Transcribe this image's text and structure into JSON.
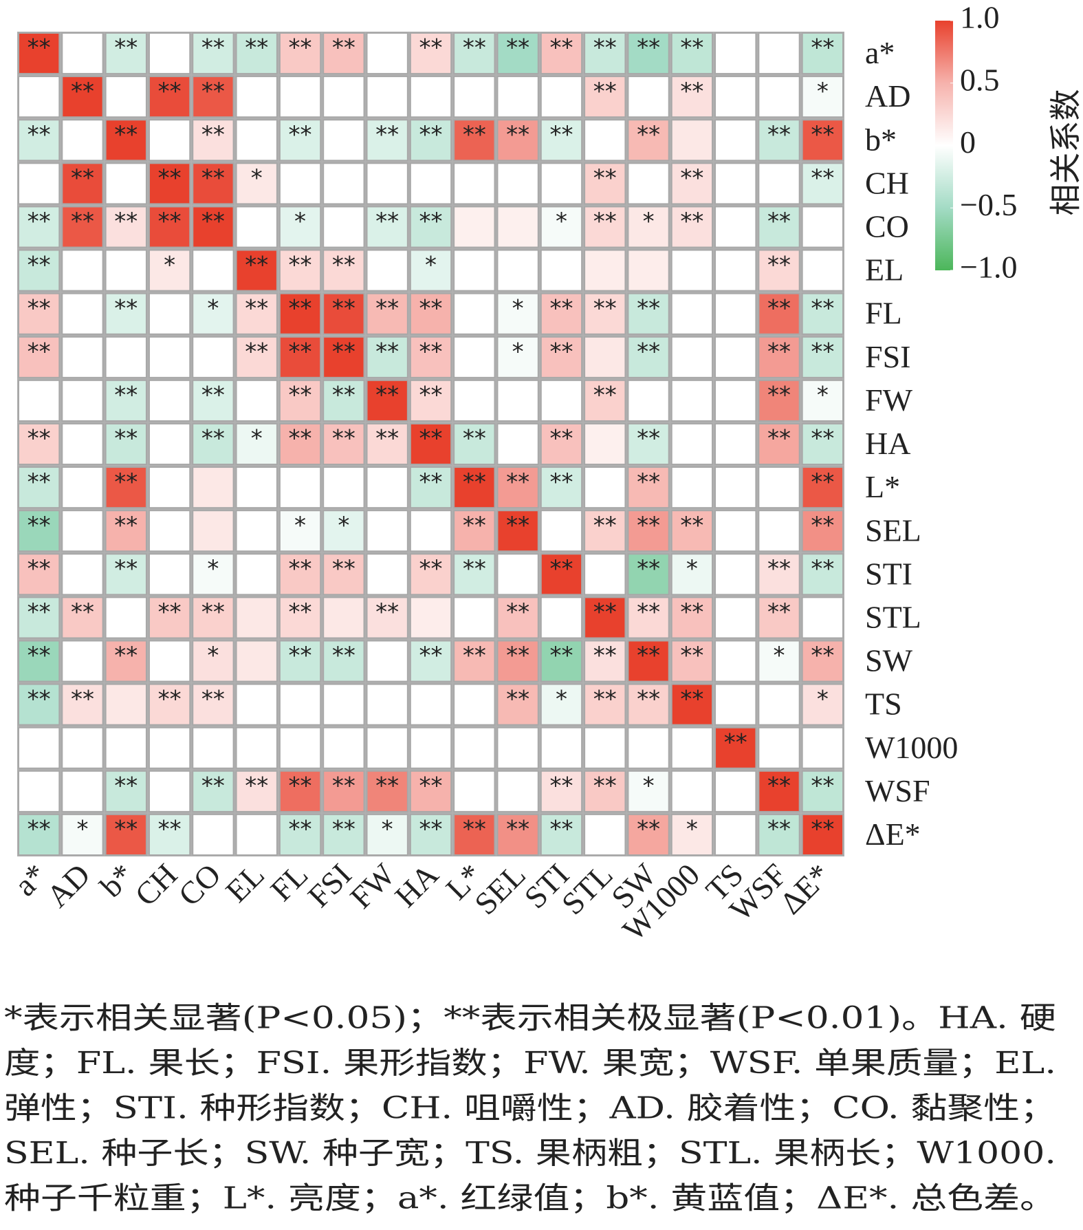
{
  "chart_data": {
    "type": "heatmap",
    "x_categories": [
      "a*",
      "AD",
      "b*",
      "CH",
      "CO",
      "EL",
      "FL",
      "FSI",
      "FW",
      "HA",
      "L*",
      "SEL",
      "STI",
      "STL",
      "SW",
      "W1000",
      "TS",
      "WSF",
      "ΔE*"
    ],
    "y_categories": [
      "a*",
      "AD",
      "b*",
      "CH",
      "CO",
      "EL",
      "FL",
      "FSI",
      "FW",
      "HA",
      "L*",
      "SEL",
      "STI",
      "STL",
      "SW",
      "TS",
      "W1000",
      "WSF",
      "ΔE*"
    ],
    "values": [
      [
        1.0,
        0,
        -0.25,
        0,
        -0.25,
        -0.3,
        0.35,
        0.4,
        0,
        0.25,
        -0.3,
        -0.5,
        0.4,
        -0.3,
        -0.5,
        -0.35,
        0,
        0,
        -0.35
      ],
      [
        0,
        1.0,
        0,
        0.95,
        0.9,
        0,
        0,
        0,
        0,
        0,
        0,
        0,
        0,
        0.3,
        0,
        0.2,
        0,
        0,
        -0.05
      ],
      [
        -0.25,
        0,
        1.0,
        0,
        0.2,
        0,
        -0.2,
        0,
        -0.2,
        -0.3,
        0.85,
        0.6,
        -0.2,
        0,
        0.45,
        0.15,
        0,
        -0.3,
        0.9
      ],
      [
        0,
        0.95,
        0,
        1.0,
        0.95,
        0.15,
        0,
        0,
        0,
        0,
        0,
        0,
        0,
        0.3,
        0,
        0.2,
        0,
        0,
        -0.2
      ],
      [
        -0.25,
        0.9,
        0.2,
        0.95,
        1.0,
        0,
        -0.15,
        0,
        -0.2,
        -0.3,
        0.1,
        0.1,
        -0.05,
        0.25,
        0.15,
        0.2,
        0,
        -0.3,
        0
      ],
      [
        -0.3,
        0,
        0,
        0.15,
        0,
        1.0,
        0.25,
        0.25,
        0,
        -0.15,
        0,
        0,
        0,
        0.12,
        0.12,
        0,
        0,
        0.25,
        0
      ],
      [
        0.35,
        0,
        -0.2,
        0,
        -0.15,
        0.25,
        1.0,
        0.95,
        0.45,
        0.5,
        0,
        -0.05,
        0.4,
        0.25,
        -0.3,
        0,
        0,
        0.8,
        -0.3
      ],
      [
        0.4,
        0,
        0,
        0,
        0,
        0.25,
        0.95,
        1.0,
        -0.3,
        0.4,
        0,
        -0.05,
        0.4,
        0.15,
        -0.3,
        0,
        0,
        0.6,
        -0.3
      ],
      [
        0,
        0,
        -0.25,
        0,
        -0.2,
        0,
        0.35,
        -0.3,
        1.0,
        0.25,
        0,
        0,
        0,
        0.3,
        0,
        0,
        0,
        0.7,
        -0.05
      ],
      [
        0.3,
        0,
        -0.3,
        0,
        -0.3,
        -0.1,
        0.5,
        0.4,
        0.25,
        1.0,
        -0.3,
        0,
        0.4,
        0.1,
        -0.25,
        0,
        0,
        0.55,
        -0.3
      ],
      [
        -0.3,
        0,
        0.9,
        0,
        0.15,
        0,
        0,
        0,
        0,
        -0.3,
        1.0,
        0.6,
        -0.25,
        0,
        0.45,
        0,
        0,
        0,
        0.9
      ],
      [
        -0.55,
        0,
        0.5,
        0,
        0.15,
        0,
        -0.05,
        -0.15,
        0,
        0,
        0.5,
        1.0,
        0,
        0.3,
        0.6,
        0.45,
        0,
        0,
        0.65
      ],
      [
        0.4,
        0,
        -0.25,
        0,
        -0.05,
        0,
        0.35,
        0.35,
        0,
        0.3,
        -0.25,
        0,
        1.0,
        0,
        -0.6,
        -0.1,
        0,
        0.2,
        -0.3
      ],
      [
        -0.3,
        0.35,
        0,
        0.35,
        0.3,
        0.15,
        0.25,
        0.15,
        0.2,
        0.12,
        0,
        0.4,
        0,
        1.0,
        0.25,
        0.4,
        0,
        0.35,
        0
      ],
      [
        -0.55,
        0,
        0.5,
        0,
        0.2,
        0.15,
        -0.3,
        -0.3,
        0,
        -0.25,
        0.45,
        0.6,
        -0.6,
        0.2,
        1.0,
        0.4,
        0,
        -0.05,
        0.5
      ],
      [
        -0.4,
        0.2,
        0.15,
        0.25,
        0.2,
        0,
        0,
        0,
        0,
        0,
        0,
        0.45,
        -0.1,
        0.3,
        0.3,
        1.0,
        0,
        0,
        0.2
      ],
      [
        0,
        0,
        0,
        0,
        0,
        0,
        0,
        0,
        0,
        0,
        0,
        0,
        0,
        0,
        0,
        0,
        1.0,
        0,
        0
      ],
      [
        0,
        0,
        -0.3,
        0,
        -0.3,
        0.2,
        0.8,
        0.6,
        0.7,
        0.5,
        0,
        0,
        0.2,
        0.35,
        -0.05,
        0,
        0,
        1.0,
        -0.35
      ],
      [
        -0.4,
        -0.05,
        0.9,
        -0.2,
        0,
        0,
        -0.3,
        -0.3,
        -0.1,
        -0.3,
        0.85,
        0.65,
        -0.3,
        0,
        0.55,
        0.15,
        0,
        -0.35,
        1.0
      ]
    ],
    "stars": [
      [
        "**",
        null,
        "**",
        null,
        "**",
        "**",
        "**",
        "**",
        null,
        "**",
        "**",
        "**",
        "**",
        "**",
        "**",
        "**",
        null,
        null,
        "**"
      ],
      [
        null,
        "**",
        null,
        "**",
        "**",
        null,
        null,
        null,
        null,
        null,
        null,
        null,
        null,
        "**",
        null,
        "**",
        null,
        null,
        "*"
      ],
      [
        "**",
        null,
        "**",
        null,
        "**",
        null,
        "**",
        null,
        "**",
        "**",
        "**",
        "**",
        "**",
        null,
        "**",
        null,
        null,
        "**",
        "**"
      ],
      [
        null,
        "**",
        null,
        "**",
        "**",
        "*",
        null,
        null,
        null,
        null,
        null,
        null,
        null,
        "**",
        null,
        "**",
        null,
        null,
        "**"
      ],
      [
        "**",
        "**",
        "**",
        "**",
        "**",
        null,
        "*",
        null,
        "**",
        "**",
        null,
        null,
        "*",
        "**",
        "*",
        "**",
        null,
        "**",
        null
      ],
      [
        "**",
        null,
        null,
        "*",
        null,
        "**",
        "**",
        "**",
        null,
        "*",
        null,
        null,
        null,
        null,
        null,
        null,
        null,
        "**",
        null
      ],
      [
        "**",
        null,
        "**",
        null,
        "*",
        "**",
        "**",
        "**",
        "**",
        "**",
        null,
        "*",
        "**",
        "**",
        "**",
        null,
        null,
        "**",
        "**"
      ],
      [
        "**",
        null,
        null,
        null,
        null,
        "**",
        "**",
        "**",
        "**",
        "**",
        null,
        "*",
        "**",
        null,
        "**",
        null,
        null,
        "**",
        "**"
      ],
      [
        null,
        null,
        "**",
        null,
        "**",
        null,
        "**",
        "**",
        "**",
        "**",
        null,
        null,
        null,
        "**",
        null,
        null,
        null,
        "**",
        "*"
      ],
      [
        "**",
        null,
        "**",
        null,
        "**",
        "*",
        "**",
        "**",
        "**",
        "**",
        "**",
        null,
        "**",
        null,
        "**",
        null,
        null,
        "**",
        "**"
      ],
      [
        "**",
        null,
        "**",
        null,
        null,
        null,
        null,
        null,
        null,
        "**",
        "**",
        "**",
        "**",
        null,
        "**",
        null,
        null,
        null,
        "**"
      ],
      [
        "**",
        null,
        "**",
        null,
        null,
        null,
        "*",
        "*",
        null,
        null,
        "**",
        "**",
        null,
        "**",
        "**",
        "**",
        null,
        null,
        "**"
      ],
      [
        "**",
        null,
        "**",
        null,
        "*",
        null,
        "**",
        "**",
        null,
        "**",
        "**",
        null,
        "**",
        null,
        "**",
        "*",
        null,
        "**",
        "**"
      ],
      [
        "**",
        "**",
        null,
        "**",
        "**",
        null,
        "**",
        null,
        "**",
        null,
        null,
        "**",
        null,
        "**",
        "**",
        "**",
        null,
        "**",
        null
      ],
      [
        "**",
        null,
        "**",
        null,
        "*",
        null,
        "**",
        "**",
        null,
        "**",
        "**",
        "**",
        "**",
        "**",
        "**",
        "**",
        null,
        "*",
        "**"
      ],
      [
        "**",
        "**",
        null,
        "**",
        "**",
        null,
        null,
        null,
        null,
        null,
        null,
        "**",
        "*",
        "**",
        "**",
        "**",
        null,
        null,
        "*"
      ],
      [
        null,
        null,
        null,
        null,
        null,
        null,
        null,
        null,
        null,
        null,
        null,
        null,
        null,
        null,
        null,
        null,
        "**",
        null,
        null
      ],
      [
        null,
        null,
        "**",
        null,
        "**",
        "**",
        "**",
        "**",
        "**",
        "**",
        null,
        null,
        "**",
        "**",
        "*",
        null,
        null,
        "**",
        "**"
      ],
      [
        "**",
        "*",
        "**",
        "**",
        null,
        null,
        "**",
        "**",
        "*",
        "**",
        "**",
        "**",
        "**",
        null,
        "**",
        "*",
        null,
        "**",
        "**"
      ]
    ],
    "colorbar": {
      "label": "相关系数",
      "lim": [
        -1.0,
        1.0
      ],
      "ticks": [
        {
          "value": 1.0,
          "label": "1.0"
        },
        0.5,
        0,
        {
          "value": -0.5,
          "label": "−0.5"
        },
        {
          "value": -1.0,
          "label": "−1.0"
        }
      ],
      "colors": [
        "#4cb65a",
        "#a3dbc5",
        "#ffffff",
        "#f6b2ac",
        "#e8412d"
      ]
    },
    "caption": [
      "*表示相关显著(P<0.05)；**表示相关极显著(P<0.01)。HA. 硬",
      "度；FL. 果长；FSI. 果形指数；FW. 果宽；WSF. 单果质量；EL.",
      "弹性；STI. 种形指数；CH. 咀嚼性；AD. 胶着性；CO. 黏聚性；",
      "SEL. 种子长；SW. 种子宽；TS. 果柄粗；STL. 果柄长；W1000.",
      "种子千粒重；L*. 亮度；a*. 红绿值；b*. 黄蓝值；ΔE*. 总色差。"
    ]
  }
}
